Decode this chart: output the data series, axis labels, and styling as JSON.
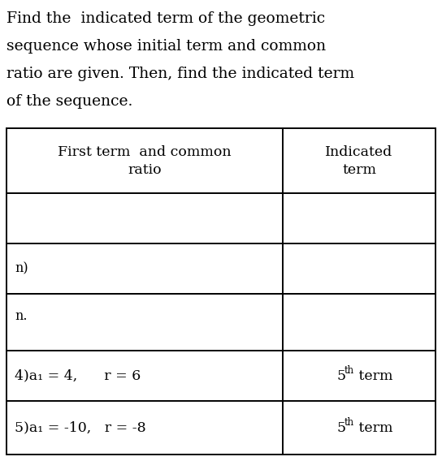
{
  "title_lines": [
    "Find the  indicated term of the geometric",
    "sequence whose initial term and common",
    "ratio are given. Then, find the indicated term",
    "of the sequence."
  ],
  "col1_header_line1": "First term  and common",
  "col1_header_line2": "ratio",
  "col2_header_line1": "Indicated",
  "col2_header_line2": "term",
  "background_color": "#ffffff",
  "text_color": "#000000",
  "font_size_title": 13.5,
  "font_size_table": 12.5
}
